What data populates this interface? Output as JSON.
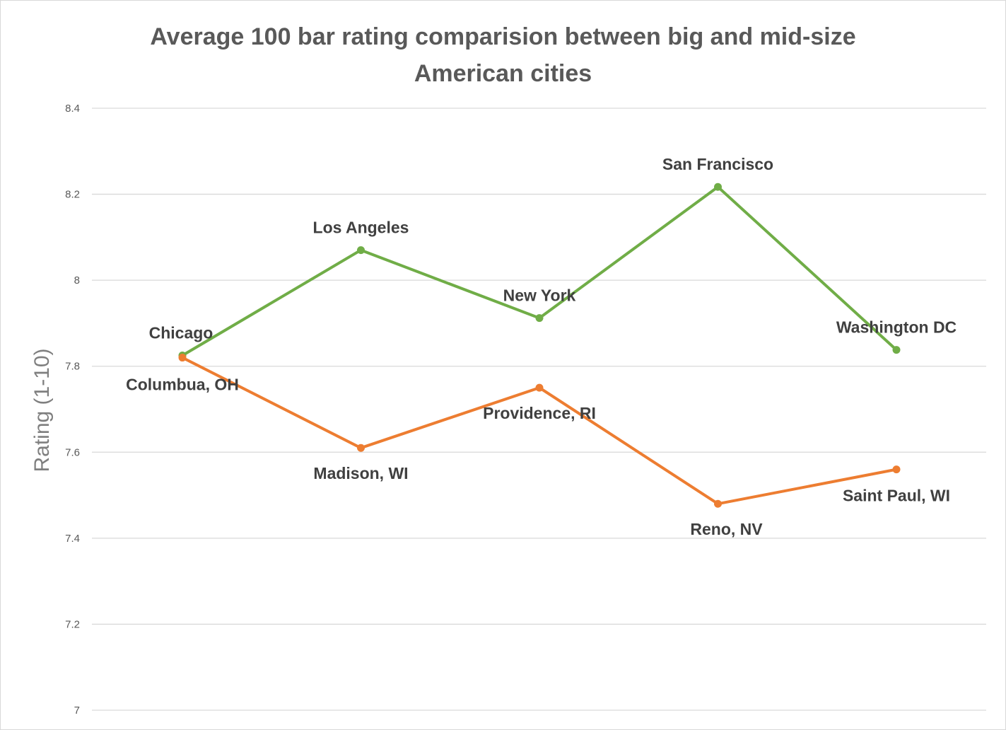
{
  "chart_data": {
    "type": "line",
    "title_lines": [
      "Average 100 bar rating comparision between big and mid-size",
      "American cities"
    ],
    "ylabel": "Rating (1-10)",
    "ylim": [
      7,
      8.4
    ],
    "yticks": [
      7,
      7.2,
      7.4,
      7.6,
      7.8,
      8,
      8.2,
      8.4
    ],
    "ytick_labels": [
      "7",
      "7.2",
      "7.4",
      "7.6",
      "7.8",
      "8",
      "8.2",
      "8.4"
    ],
    "grid": true,
    "x": [
      1,
      2,
      3,
      4,
      5
    ],
    "series": [
      {
        "color": "#70ad47",
        "values": [
          7.825,
          8.07,
          7.912,
          8.217,
          7.838
        ],
        "point_labels": [
          "Chicago",
          "Los Angeles",
          "New York",
          "San Francisco",
          "Washington DC"
        ]
      },
      {
        "color": "#ed7d31",
        "values": [
          7.82,
          7.61,
          7.75,
          7.48,
          7.56
        ],
        "point_labels": [
          "Columbua, OH",
          "Madison, WI",
          "Providence, RI",
          "Reno, NV",
          "Saint Paul,  WI"
        ]
      }
    ]
  }
}
